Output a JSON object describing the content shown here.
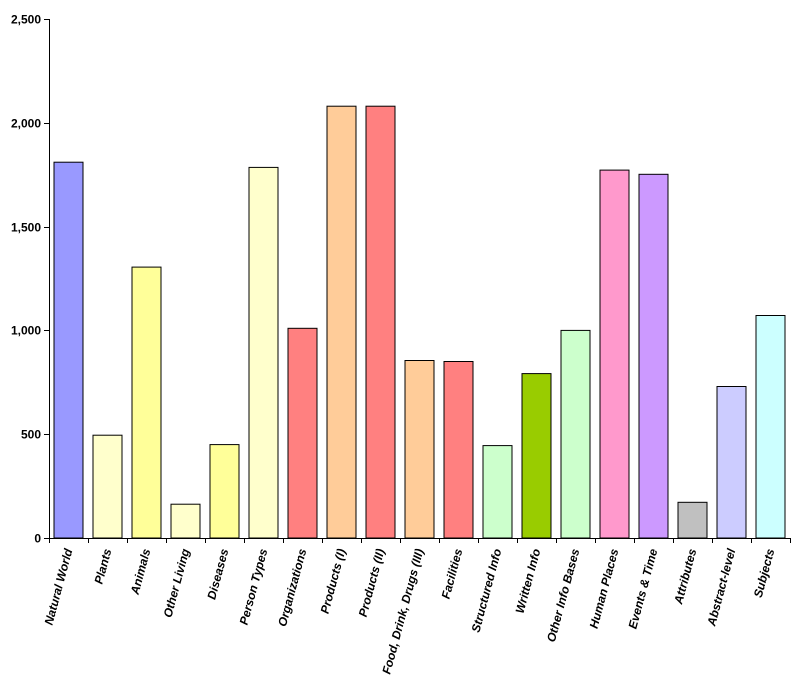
{
  "chart_data": {
    "type": "bar",
    "title": "",
    "xlabel": "",
    "ylabel": "",
    "ylim": [
      0,
      2500
    ],
    "yticks": [
      0,
      500,
      1000,
      1500,
      2000,
      2500
    ],
    "ytick_labels": [
      "0",
      "500",
      "1,000",
      "1,500",
      "2,000",
      "2,500"
    ],
    "grid": false,
    "legend": "none",
    "bar_outline_color": "#000000",
    "categories": [
      "Natural World",
      "Plants",
      "Animals",
      "Other Living",
      "Diseases",
      "Person Types",
      "Organizations",
      "Products (I)",
      "Products (II)",
      "Food, Drink, Drugs (III)",
      "Facilities",
      "Structured Info",
      "Written Info",
      "Other Info Bases",
      "Human Places",
      "Events & Time",
      "Attributes",
      "Abstract-level",
      "Subjects"
    ],
    "values": [
      1810,
      495,
      1305,
      163,
      450,
      1785,
      1010,
      2080,
      2080,
      855,
      850,
      445,
      792,
      1000,
      1772,
      1752,
      172,
      730,
      1072
    ],
    "colors": [
      "#9999ff",
      "#ffffcc",
      "#ffff99",
      "#ffffcc",
      "#ffff99",
      "#ffffcc",
      "#ff8080",
      "#ffcc99",
      "#ff8080",
      "#ffcc99",
      "#ff8080",
      "#ccffcc",
      "#99cc00",
      "#ccffcc",
      "#ff99cc",
      "#cc99ff",
      "#c0c0c0",
      "#ccccff",
      "#ccffff"
    ]
  }
}
